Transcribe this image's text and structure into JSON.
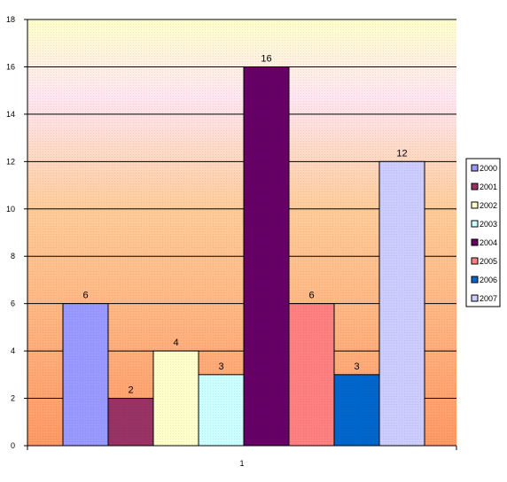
{
  "chart_data": {
    "type": "bar",
    "categories": [
      "1"
    ],
    "series": [
      {
        "name": "2000",
        "values": [
          6
        ],
        "color": "#9999ff"
      },
      {
        "name": "2001",
        "values": [
          2
        ],
        "color": "#993366"
      },
      {
        "name": "2002",
        "values": [
          4
        ],
        "color": "#ffffcc"
      },
      {
        "name": "2003",
        "values": [
          3
        ],
        "color": "#ccffff"
      },
      {
        "name": "2004",
        "values": [
          16
        ],
        "color": "#660066"
      },
      {
        "name": "2005",
        "values": [
          6
        ],
        "color": "#ff8080"
      },
      {
        "name": "2006",
        "values": [
          3
        ],
        "color": "#0066cc"
      },
      {
        "name": "2007",
        "values": [
          12
        ],
        "color": "#ccccff"
      }
    ],
    "data_labels": [
      "6",
      "2",
      "4",
      "3",
      "16",
      "6",
      "3",
      "12"
    ],
    "ylim": [
      0,
      18
    ],
    "yticks": [
      "0",
      "2",
      "4",
      "6",
      "8",
      "10",
      "12",
      "14",
      "16",
      "18"
    ],
    "grid": true,
    "legend_position": "right",
    "background_gradient": [
      "#ffffcc",
      "#ffcc99",
      "#ff9966"
    ],
    "background_band": "#ffe6f2"
  }
}
